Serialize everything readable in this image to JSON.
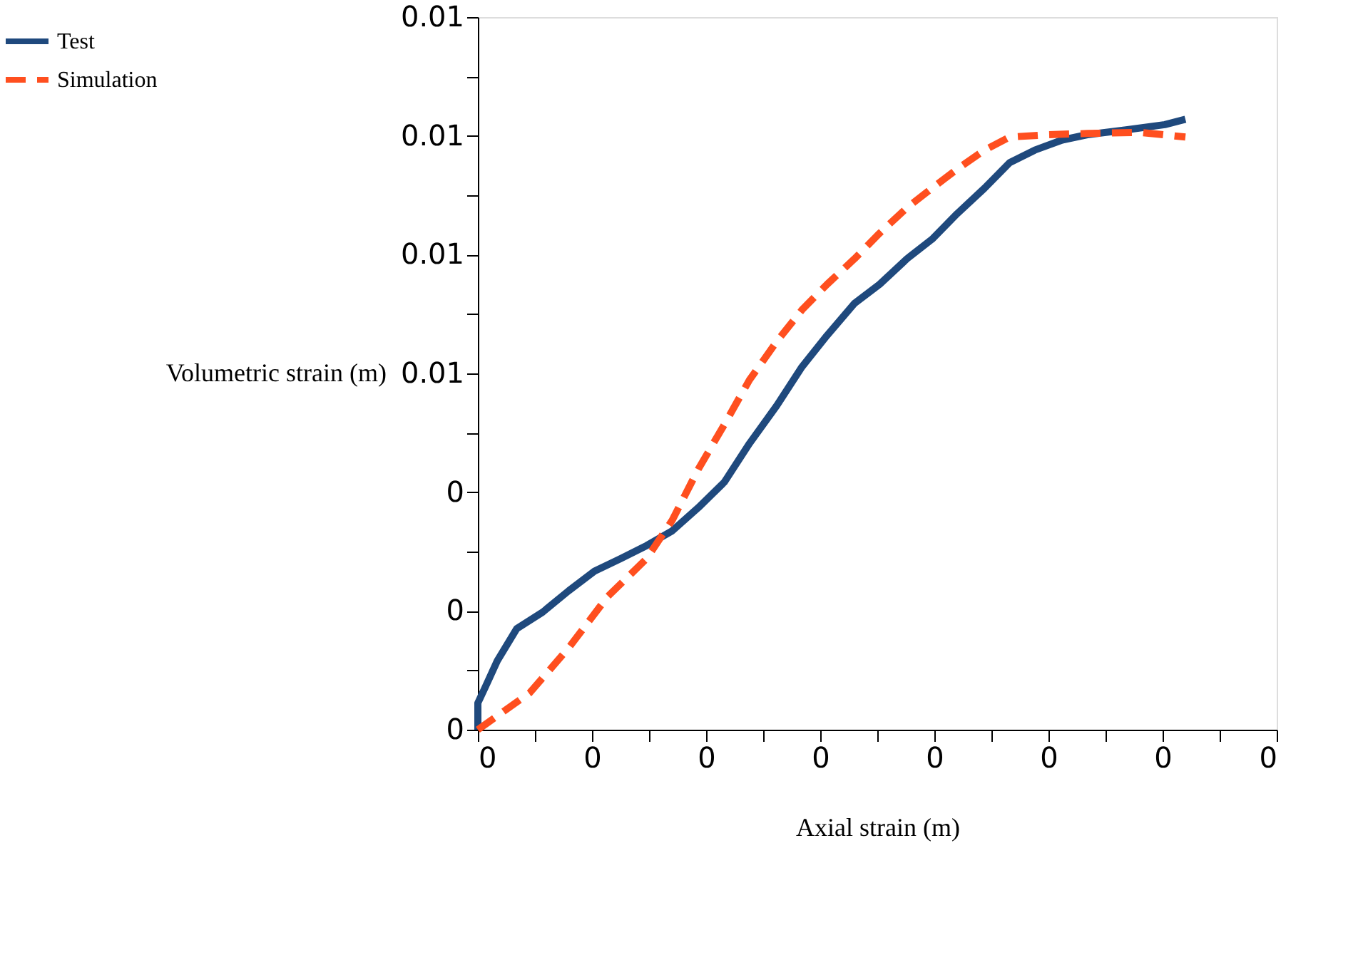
{
  "chart_data": {
    "type": "line",
    "xlabel": "Axial strain (m)",
    "ylabel": "Volumetric strain (m)",
    "xlim": [
      0,
      0.0035
    ],
    "ylim": [
      0,
      0.012
    ],
    "xticks": [
      {
        "value": 0,
        "label": "0"
      },
      {
        "value": 0.00025,
        "label": null
      },
      {
        "value": 0.0005,
        "label": "0"
      },
      {
        "value": 0.00075,
        "label": null
      },
      {
        "value": 0.001,
        "label": "0"
      },
      {
        "value": 0.00125,
        "label": null
      },
      {
        "value": 0.0015,
        "label": "0"
      },
      {
        "value": 0.00175,
        "label": null
      },
      {
        "value": 0.002,
        "label": "0"
      },
      {
        "value": 0.00225,
        "label": null
      },
      {
        "value": 0.0025,
        "label": "0"
      },
      {
        "value": 0.00275,
        "label": null
      },
      {
        "value": 0.003,
        "label": "0"
      },
      {
        "value": 0.00325,
        "label": null
      },
      {
        "value": 0.0035,
        "label": "0"
      }
    ],
    "yticks": [
      {
        "value": 0,
        "label": "0"
      },
      {
        "value": 0.001,
        "label": null
      },
      {
        "value": 0.002,
        "label": "0"
      },
      {
        "value": 0.003,
        "label": null
      },
      {
        "value": 0.004,
        "label": "0"
      },
      {
        "value": 0.005,
        "label": null
      },
      {
        "value": 0.006,
        "label": "0.01"
      },
      {
        "value": 0.007,
        "label": null
      },
      {
        "value": 0.008,
        "label": "0.01"
      },
      {
        "value": 0.009,
        "label": null
      },
      {
        "value": 0.01,
        "label": "0.01"
      },
      {
        "value": 0.011,
        "label": null
      },
      {
        "value": 0.012,
        "label": "0.01"
      }
    ],
    "grid": false,
    "legend": "left",
    "series": [
      {
        "name": "Test",
        "color": "#1f497d",
        "line_style": "solid",
        "x": [
          0,
          0,
          3.4e-05,
          8.5e-05,
          0.00017,
          0.000284,
          0.000398,
          0.000511,
          0.000625,
          0.000739,
          0.000852,
          0.000966,
          0.00108,
          0.00119,
          0.00131,
          0.00142,
          0.00153,
          0.00165,
          0.00176,
          0.00188,
          0.00199,
          0.0021,
          0.00222,
          0.00233,
          0.00244,
          0.00256,
          0.00267,
          0.00284,
          0.00301,
          0.0031
        ],
        "values": [
          0,
          0.00045,
          0.00073,
          0.00116,
          0.0017,
          0.00198,
          0.00234,
          0.00267,
          0.00288,
          0.0031,
          0.00335,
          0.00374,
          0.00417,
          0.00482,
          0.00546,
          0.00611,
          0.00664,
          0.00718,
          0.0075,
          0.00793,
          0.00826,
          0.00869,
          0.00912,
          0.00955,
          0.00976,
          0.00993,
          0.01002,
          0.0101,
          0.01019,
          0.01028
        ]
      },
      {
        "name": "Simulation",
        "color": "#ff4f1f",
        "line_style": "dashed",
        "x": [
          0,
          0.000227,
          0.000398,
          0.000568,
          0.000739,
          0.000852,
          0.000966,
          0.00108,
          0.00119,
          0.00131,
          0.00142,
          0.00153,
          0.00165,
          0.00176,
          0.00188,
          0.00199,
          0.0021,
          0.00222,
          0.00233,
          0.0025,
          0.00267,
          0.0029,
          0.0031
        ],
        "values": [
          0,
          0.00062,
          0.00138,
          0.00224,
          0.00288,
          0.00353,
          0.00439,
          0.00514,
          0.00589,
          0.00654,
          0.00707,
          0.0075,
          0.00793,
          0.00836,
          0.00879,
          0.00912,
          0.00944,
          0.00976,
          0.00998,
          0.01002,
          0.01004,
          0.01006,
          0.00998
        ]
      }
    ]
  }
}
